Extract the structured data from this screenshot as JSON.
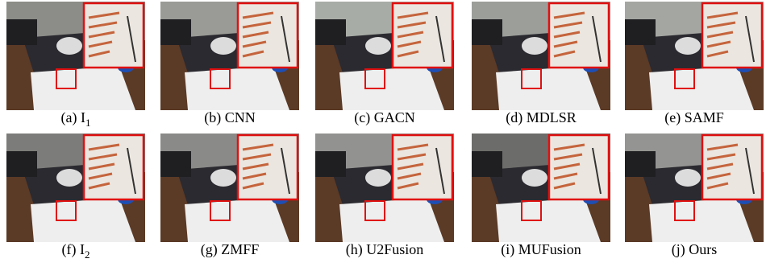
{
  "figure": {
    "panels": [
      {
        "caption": "(a) I",
        "subscript": "1"
      },
      {
        "caption": "(b) CNN"
      },
      {
        "caption": "(c) GACN"
      },
      {
        "caption": "(d) MDLSR"
      },
      {
        "caption": "(e) SAMF"
      },
      {
        "caption": "(f) I",
        "subscript": "2"
      },
      {
        "caption": "(g) ZMFF"
      },
      {
        "caption": "(h) U2Fusion"
      },
      {
        "caption": "(i) MUFusion"
      },
      {
        "caption": "(j) Ours"
      }
    ]
  }
}
